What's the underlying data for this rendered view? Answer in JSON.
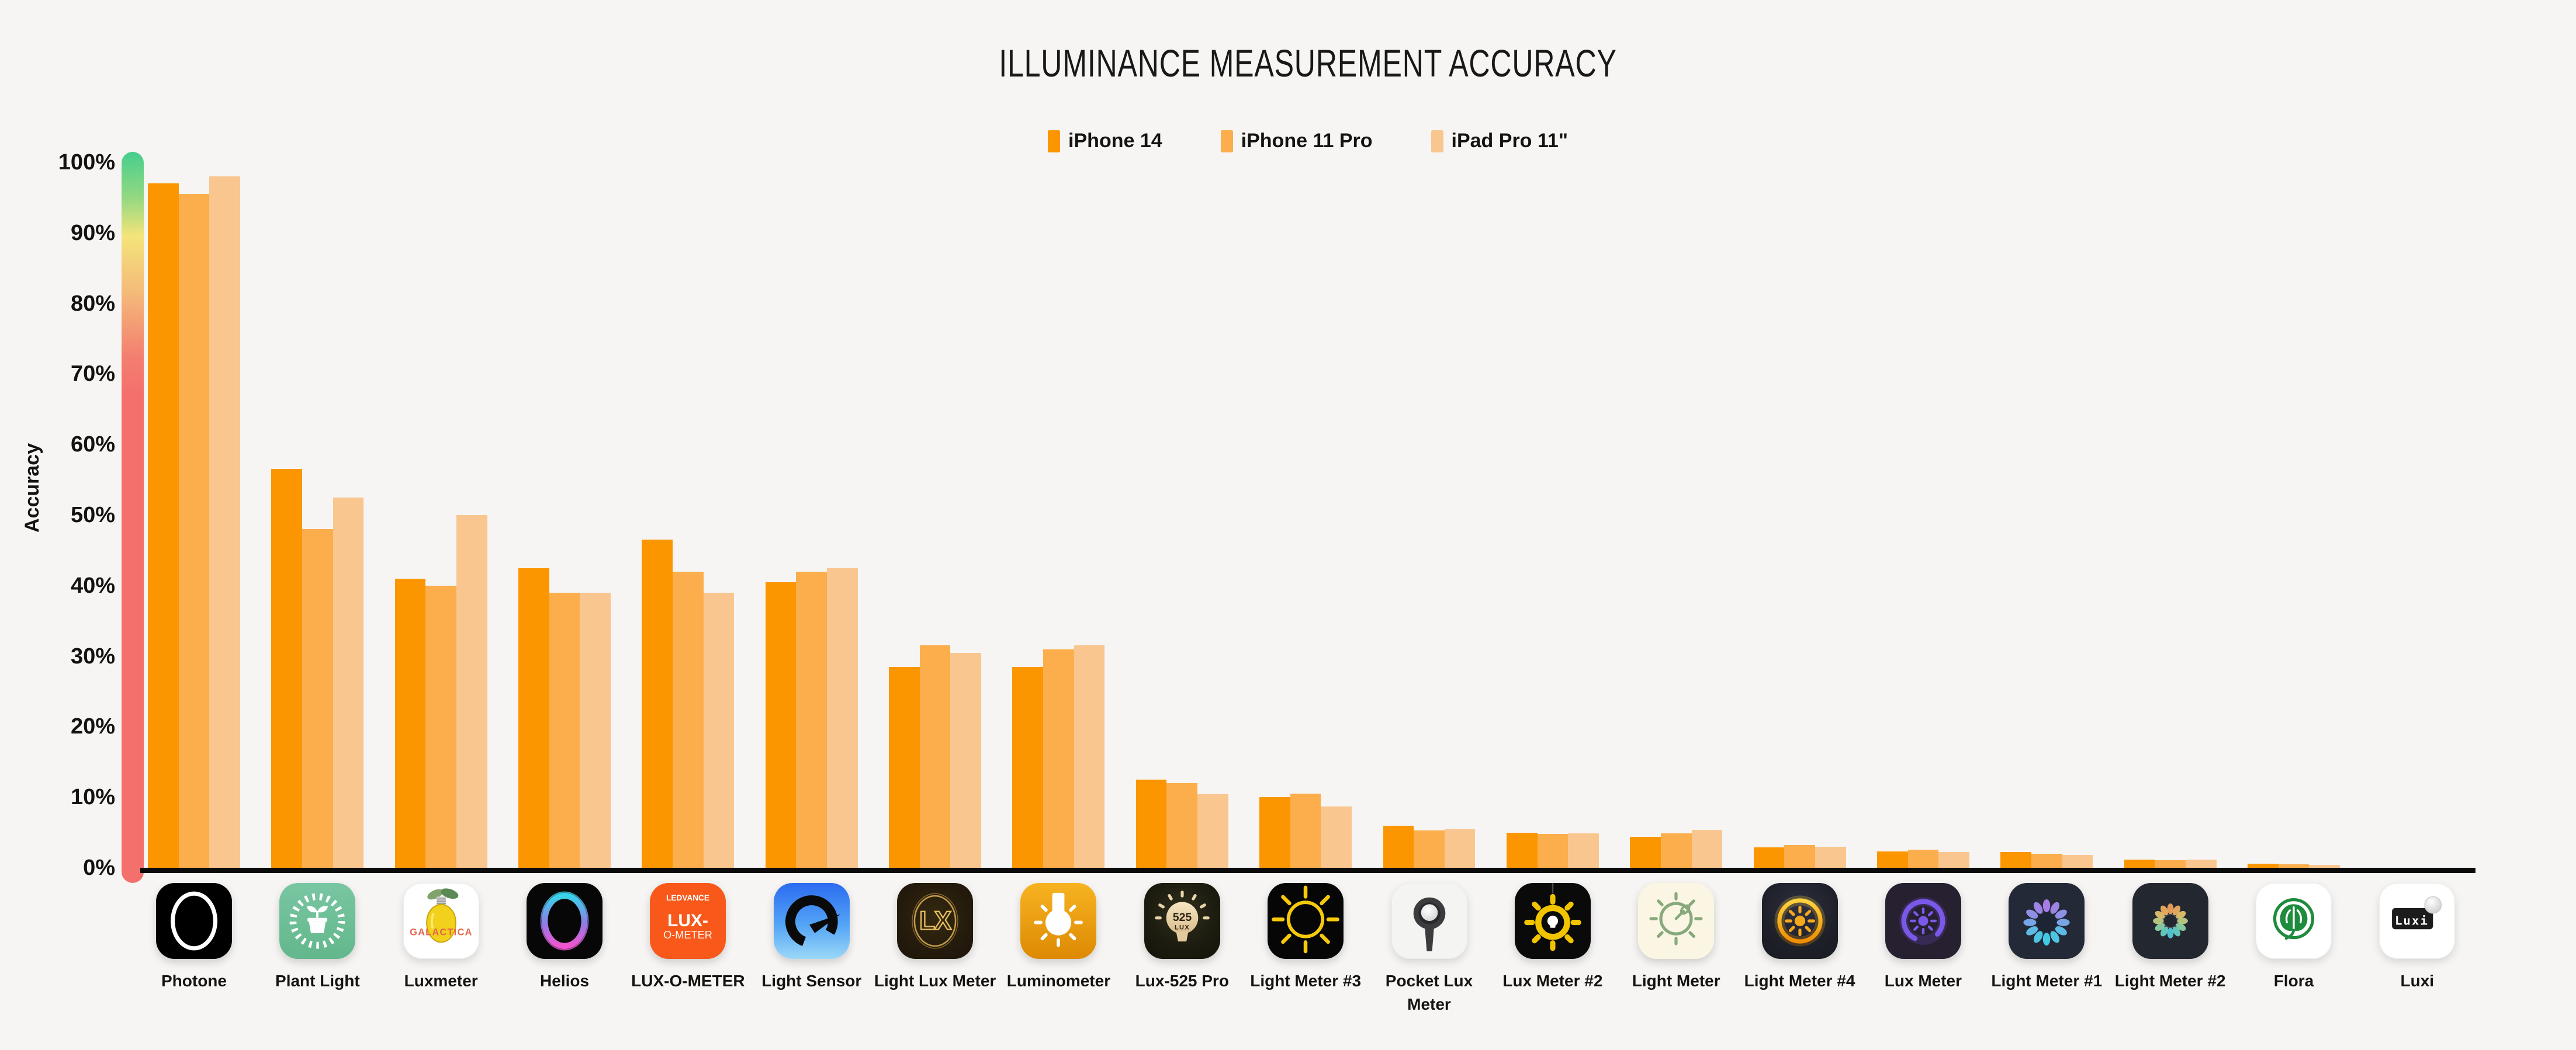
{
  "title": "ILLUMINANCE MEASUREMENT ACCURACY",
  "legend": {
    "items": [
      {
        "label": "iPhone 14",
        "color": "#fb9601"
      },
      {
        "label": "iPhone 11 Pro",
        "color": "#fbae4b"
      },
      {
        "label": "iPad Pro 11\"",
        "color": "#f9c690"
      }
    ]
  },
  "y_axis": {
    "label": "Accuracy",
    "ticks": [
      "0%",
      "10%",
      "20%",
      "30%",
      "40%",
      "50%",
      "60%",
      "70%",
      "80%",
      "90%",
      "100%"
    ]
  },
  "accuracy_scale": {
    "top_color": "#45ce8d",
    "mid_color": "#f4e47a",
    "bottom_color": "#f4706d"
  },
  "chart_data": {
    "type": "bar",
    "title": "ILLUMINANCE MEASUREMENT ACCURACY",
    "xlabel": "",
    "ylabel": "Accuracy",
    "ylim": [
      0,
      100
    ],
    "grid": false,
    "legend_position": "top-center",
    "categories": [
      "Photone",
      "Plant Light",
      "Luxmeter",
      "Helios",
      "LUX-O-METER",
      "Light Sensor",
      "Light Lux Meter",
      "Luminometer",
      "Lux-525 Pro",
      "Light Meter #3",
      "Pocket Lux Meter",
      "Lux Meter #2",
      "Light Meter",
      "Light Meter #4",
      "Lux Meter",
      "Light Meter #1",
      "Light Meter #2",
      "Flora",
      "Luxi"
    ],
    "icons": [
      "photone-icon",
      "plant-light-icon",
      "luxmeter-icon",
      "helios-icon",
      "lux-o-meter-icon",
      "light-sensor-icon",
      "light-lux-meter-icon",
      "luminometer-icon",
      "lux-525-pro-icon",
      "light-meter-3-icon",
      "pocket-lux-meter-icon",
      "lux-meter-2-icon",
      "light-meter-icon",
      "light-meter-4-icon",
      "lux-meter-icon",
      "light-meter-1-icon",
      "light-meter-2-icon",
      "flora-icon",
      "luxi-icon"
    ],
    "series": [
      {
        "name": "iPhone 14",
        "color": "#fb9601",
        "values": [
          97,
          56.5,
          41,
          42.5,
          46.5,
          40.5,
          28.5,
          28.5,
          12.5,
          10,
          6,
          5,
          4.4,
          2.9,
          2.3,
          2.2,
          1.2,
          0.6,
          0
        ]
      },
      {
        "name": "iPhone 11 Pro",
        "color": "#fbae4b",
        "values": [
          95.5,
          48,
          40,
          39,
          42,
          42,
          31.5,
          31,
          12,
          10.5,
          5.3,
          4.8,
          4.9,
          3.2,
          2.6,
          2,
          1.1,
          0.5,
          0
        ]
      },
      {
        "name": "iPad Pro 11\"",
        "color": "#f9c690",
        "values": [
          98,
          52.5,
          50,
          39,
          39,
          42.5,
          30.5,
          31.5,
          10.4,
          8.7,
          5.5,
          4.9,
          5.4,
          3,
          2.2,
          1.8,
          1.2,
          0.4,
          0
        ]
      }
    ]
  }
}
